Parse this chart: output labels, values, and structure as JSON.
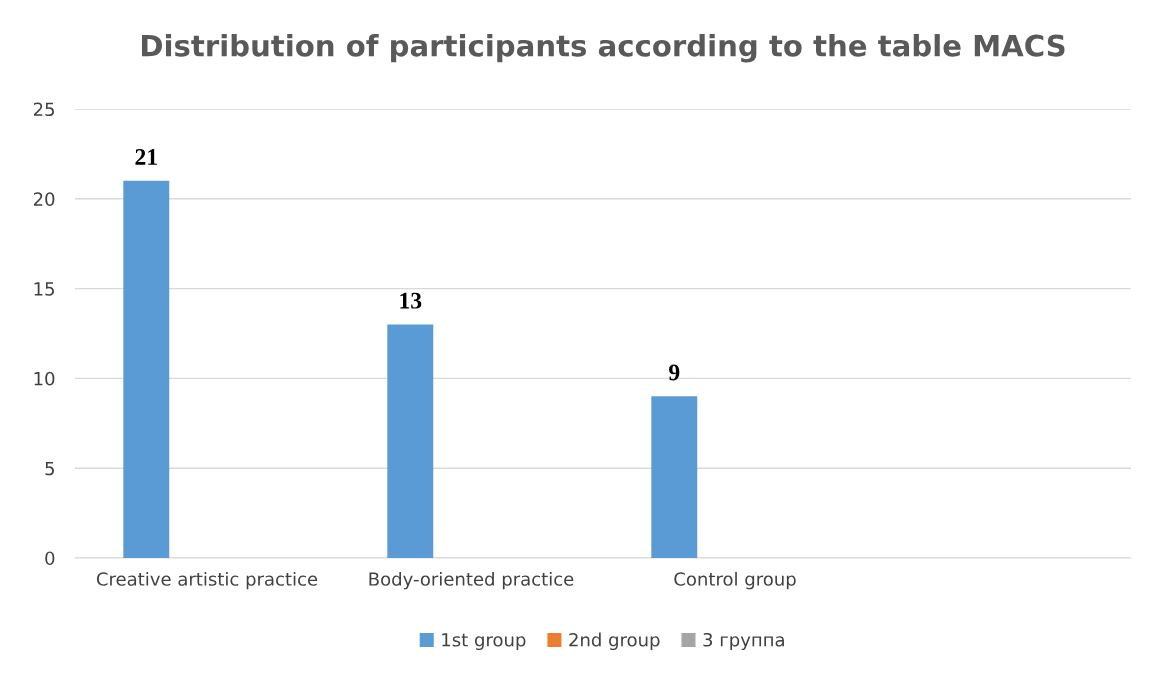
{
  "chart_data": {
    "type": "bar",
    "title": "Distribution of participants according to the table MACS",
    "categories": [
      "Creative artistic practice",
      "Body-oriented practice",
      "Control group",
      null
    ],
    "series": [
      {
        "name": "1st group",
        "color": "#5b9bd5",
        "values": [
          21,
          13,
          9,
          null
        ]
      },
      {
        "name": "2nd group",
        "color": "#ed7d31",
        "values": [
          null,
          null,
          null,
          null
        ]
      },
      {
        "name": "3 группа",
        "color": "#a5a5a5",
        "values": [
          null,
          null,
          null,
          null
        ]
      }
    ],
    "ylim": [
      0,
      25
    ],
    "yticks": [
      0,
      5,
      10,
      15,
      20,
      25
    ],
    "grid": "y",
    "legend": "bottom",
    "data_labels": true
  }
}
